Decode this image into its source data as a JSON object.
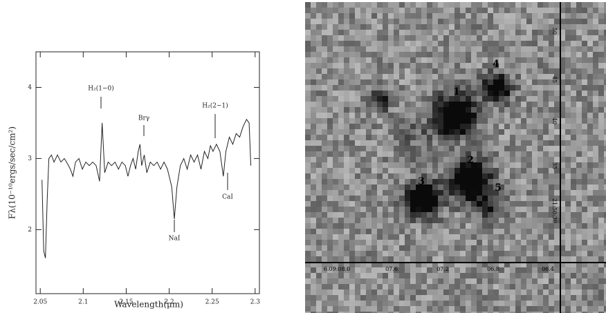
{
  "chart_data": {
    "type": "line",
    "x_label": "Wavelength(μm)",
    "y_label": "Fλ(10⁻¹⁰ergs/sec/cm²)",
    "xlim": [
      2.045,
      2.305
    ],
    "ylim": [
      1.1,
      4.5
    ],
    "xticks": [
      2.05,
      2.1,
      2.15,
      2.2,
      2.25,
      2.3
    ],
    "yticks": [
      2,
      3,
      4
    ],
    "annotations": [
      "H₂(1−0)",
      "Brγ",
      "H₂(2−1)",
      "NaI",
      "CaI"
    ],
    "series": [
      {
        "color": "#222222",
        "x": [
          2.052,
          2.054,
          2.056,
          2.058,
          2.06,
          2.063,
          2.066,
          2.07,
          2.074,
          2.078,
          2.082,
          2.085,
          2.088,
          2.091,
          2.095,
          2.099,
          2.103,
          2.107,
          2.111,
          2.115,
          2.119,
          2.122,
          2.125,
          2.129,
          2.133,
          2.137,
          2.141,
          2.145,
          2.149,
          2.152,
          2.155,
          2.158,
          2.161,
          2.164,
          2.166,
          2.168,
          2.171,
          2.174,
          2.178,
          2.182,
          2.186,
          2.19,
          2.194,
          2.198,
          2.203,
          2.206,
          2.209,
          2.213,
          2.217,
          2.221,
          2.225,
          2.229,
          2.233,
          2.237,
          2.241,
          2.245,
          2.248,
          2.251,
          2.255,
          2.259,
          2.263,
          2.266,
          2.27,
          2.274,
          2.278,
          2.282,
          2.286,
          2.29,
          2.293,
          2.295
        ],
        "values": [
          2.7,
          1.7,
          1.6,
          2.4,
          3.0,
          3.05,
          2.95,
          3.05,
          2.95,
          3.0,
          2.92,
          2.85,
          2.75,
          2.95,
          3.0,
          2.85,
          2.95,
          2.9,
          2.95,
          2.9,
          2.68,
          3.5,
          2.8,
          2.95,
          2.9,
          2.95,
          2.85,
          2.95,
          2.9,
          2.75,
          2.9,
          3.0,
          2.85,
          3.1,
          3.2,
          2.9,
          3.05,
          2.8,
          2.95,
          2.9,
          2.95,
          2.85,
          2.95,
          2.85,
          2.6,
          2.15,
          2.6,
          2.9,
          3.0,
          2.85,
          3.05,
          2.95,
          3.05,
          2.85,
          3.1,
          3.0,
          3.18,
          3.1,
          3.2,
          3.1,
          2.75,
          3.1,
          3.3,
          3.2,
          3.35,
          3.3,
          3.45,
          3.55,
          3.5,
          2.9
        ]
      }
    ]
  },
  "image": {
    "source_labels": [
      "1",
      "2",
      "3",
      "4",
      "5"
    ],
    "ra_labels": [
      "6:09:08.0",
      "07.6",
      "07.2",
      "06.8",
      "06.4"
    ],
    "dec_labels": [
      "50",
      "45",
      "40",
      "35",
      "21:50:30"
    ]
  }
}
